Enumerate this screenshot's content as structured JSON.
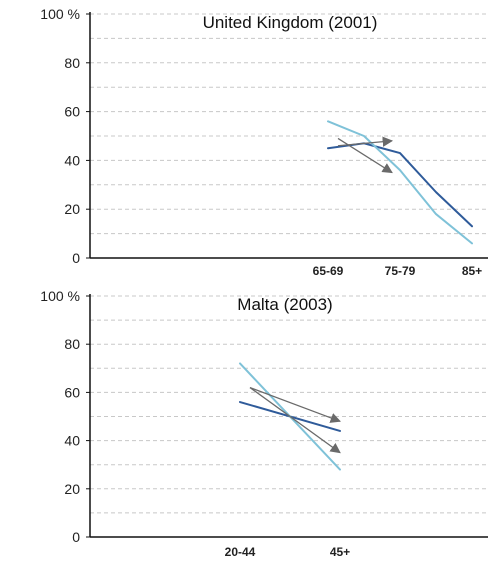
{
  "colors": {
    "dark_blue": "#2f5b9a",
    "light_blue": "#7fc2d8",
    "arrow_gray": "#6a6a6a",
    "grid": "#c8c8c8",
    "axis": "#111111"
  },
  "chart_data": [
    {
      "type": "line",
      "title": "United Kingdom (2001)",
      "xlabel": "",
      "ylabel": "",
      "y_tick_labels": [
        "0",
        "20",
        "40",
        "60",
        "80",
        "100 %"
      ],
      "yticks": [
        0,
        20,
        40,
        60,
        80,
        100
      ],
      "ylim": [
        0,
        100
      ],
      "x_categories": [
        "65-69",
        "70-74",
        "75-79",
        "80-84",
        "85+"
      ],
      "x_tick_labels": [
        "65-69",
        "75-79",
        "85+"
      ],
      "grid": true,
      "series": [
        {
          "color": "dark_blue",
          "values": [
            45,
            47,
            43,
            27,
            13
          ]
        },
        {
          "color": "light_blue",
          "values": [
            56,
            50,
            36,
            18,
            6
          ]
        }
      ],
      "annotations": [
        {
          "type": "arrow",
          "color": "arrow_gray",
          "from": [
            "65-69",
            46
          ],
          "to": [
            "75-79",
            48
          ]
        },
        {
          "type": "arrow",
          "color": "arrow_gray",
          "from": [
            "65-69",
            49
          ],
          "to": [
            "75-79",
            35
          ]
        }
      ]
    },
    {
      "type": "line",
      "title": "Malta (2003)",
      "xlabel": "",
      "ylabel": "",
      "y_tick_labels": [
        "0",
        "20",
        "40",
        "60",
        "80",
        "100 %"
      ],
      "yticks": [
        0,
        20,
        40,
        60,
        80,
        100
      ],
      "ylim": [
        0,
        100
      ],
      "x_categories": [
        "20-44",
        "45+"
      ],
      "x_tick_labels": [
        "20-44",
        "45+"
      ],
      "grid": true,
      "series": [
        {
          "color": "dark_blue",
          "values": [
            56,
            44
          ]
        },
        {
          "color": "light_blue",
          "values": [
            72,
            28
          ]
        }
      ],
      "annotations": [
        {
          "type": "arrow",
          "color": "arrow_gray",
          "from": [
            "20-44",
            62
          ],
          "to": [
            "45+",
            48
          ]
        },
        {
          "type": "arrow",
          "color": "arrow_gray",
          "from": [
            "20-44",
            62
          ],
          "to": [
            "45+",
            35
          ]
        }
      ]
    }
  ]
}
